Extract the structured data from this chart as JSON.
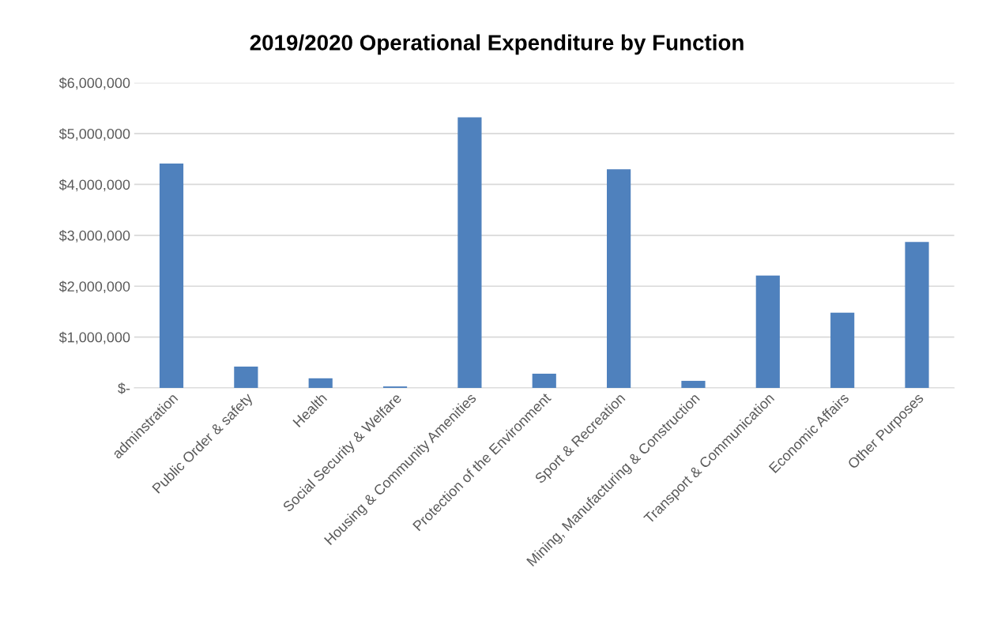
{
  "chart_data": {
    "type": "bar",
    "title": "2019/2020 Operational Expenditure by Function",
    "categories": [
      "adminstration",
      "Public Order & safety",
      "Health",
      "Social Security & Welfare",
      "Housing & Community Amenities",
      "Protection of the Environment",
      "Sport & Recreation",
      "Mining, Manufacturing & Construction",
      "Transport & Communication",
      "Economic Affairs",
      "Other Purposes"
    ],
    "values": [
      4410000,
      420000,
      190000,
      30000,
      5320000,
      280000,
      4300000,
      140000,
      2210000,
      1480000,
      2870000
    ],
    "color": "#4f81bd",
    "ylim": [
      0,
      6000000
    ],
    "yticks": [
      {
        "value": 0,
        "label": "$-"
      },
      {
        "value": 1000000,
        "label": "$1,000,000"
      },
      {
        "value": 2000000,
        "label": "$2,000,000"
      },
      {
        "value": 3000000,
        "label": "$3,000,000"
      },
      {
        "value": 4000000,
        "label": "$4,000,000"
      },
      {
        "value": 5000000,
        "label": "$5,000,000"
      },
      {
        "value": 6000000,
        "label": "$6,000,000"
      }
    ],
    "grid": "y"
  }
}
